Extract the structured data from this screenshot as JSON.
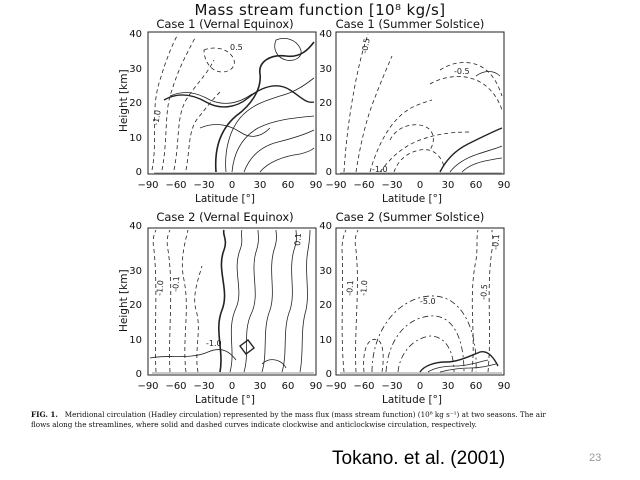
{
  "figure": {
    "main_title": "Mass stream function [10⁸ kg/s]",
    "panels": [
      {
        "title": "Case 1 (Vernal Equinox)",
        "xlabel": "Latitude [°]",
        "ylabel": "Height [km]",
        "contour_labels": [
          "0.5",
          "-1.0"
        ]
      },
      {
        "title": "Case 1 (Summer Solstice)",
        "xlabel": "Latitude [°]",
        "ylabel": "",
        "contour_labels": [
          "-0.5",
          "-0.5",
          "-1.0"
        ]
      },
      {
        "title": "Case 2 (Vernal Equinox)",
        "xlabel": "Latitude [°]",
        "ylabel": "Height [km]",
        "contour_labels": [
          "-1.0",
          "-0.1",
          "0.1",
          "-1.0"
        ]
      },
      {
        "title": "Case 2 (Summer Solstice)",
        "xlabel": "Latitude [°]",
        "ylabel": "",
        "contour_labels": [
          "-0.1",
          "-1.0",
          "-0.5",
          "-5.0",
          "-0.1"
        ]
      }
    ],
    "x_ticks": [
      "−90",
      "−60",
      "−30",
      "0",
      "30",
      "60",
      "90"
    ],
    "y_ticks": [
      "0",
      "10",
      "20",
      "30",
      "40"
    ]
  },
  "caption": {
    "label": "FIG. 1.",
    "text": "Meridional circulation (Hadley circulation) represented by the mass flux (mass stream function) (10⁸ kg s⁻¹) at two seasons. The air flows along the streamlines, where solid and dashed curves indicate clockwise and anticlockwise circulation, respectively."
  },
  "citation": "Tokano. et al. (2001)",
  "slide_number": "23"
}
